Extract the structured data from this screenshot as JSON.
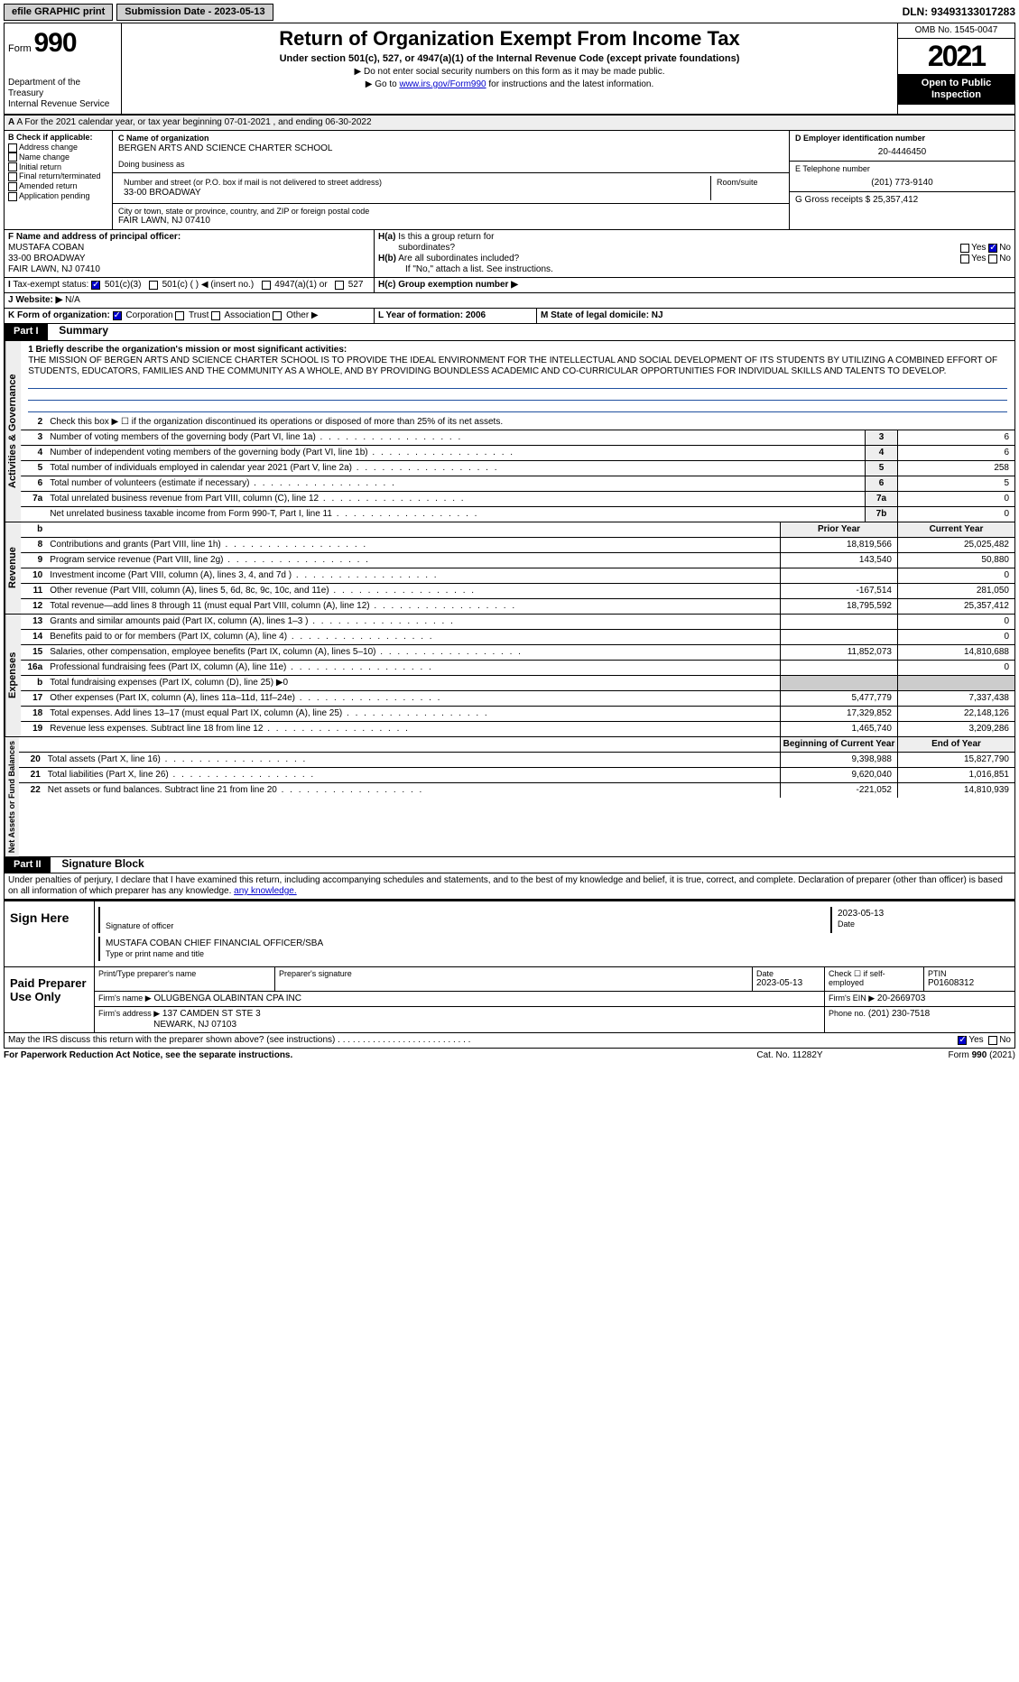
{
  "top": {
    "efile": "efile GRAPHIC print",
    "submission": "Submission Date - 2023-05-13",
    "dln": "DLN: 93493133017283"
  },
  "header": {
    "form_label": "Form",
    "form_num": "990",
    "dept": "Department of the Treasury\nInternal Revenue Service",
    "title": "Return of Organization Exempt From Income Tax",
    "sub": "Under section 501(c), 527, or 4947(a)(1) of the Internal Revenue Code (except private foundations)",
    "bullet1": "▶ Do not enter social security numbers on this form as it may be made public.",
    "bullet2_pre": "▶ Go to ",
    "bullet2_link": "www.irs.gov/Form990",
    "bullet2_post": " for instructions and the latest information.",
    "omb": "OMB No. 1545-0047",
    "year": "2021",
    "open": "Open to Public Inspection"
  },
  "rowA": "A For the 2021 calendar year, or tax year beginning 07-01-2021    , and ending 06-30-2022",
  "colB": {
    "hdr": "B Check if applicable:",
    "items": [
      "Address change",
      "Name change",
      "Initial return",
      "Final return/terminated",
      "Amended return",
      "Application pending"
    ]
  },
  "colC": {
    "hdr": "C Name of organization",
    "name": "BERGEN ARTS AND SCIENCE CHARTER SCHOOL",
    "dba": "Doing business as",
    "addr_hdr": "Number and street (or P.O. box if mail is not delivered to street address)",
    "addr": "33-00 BROADWAY",
    "room": "Room/suite",
    "city_hdr": "City or town, state or province, country, and ZIP or foreign postal code",
    "city": "FAIR LAWN, NJ  07410"
  },
  "colD": {
    "ein_hdr": "D Employer identification number",
    "ein": "20-4446450",
    "tel_hdr": "E Telephone number",
    "tel": "(201) 773-9140",
    "gross": "G Gross receipts $ 25,357,412"
  },
  "rowF": {
    "hdr": "F  Name and address of principal officer:",
    "name": "MUSTAFA COBAN",
    "addr1": "33-00 BROADWAY",
    "addr2": "FAIR LAWN, NJ  07410"
  },
  "rowH": {
    "ha": "H(a)  Is this a group return for subordinates?",
    "hb": "H(b)  Are all subordinates included?",
    "hb_note": "If \"No,\" attach a list. See instructions.",
    "hc": "H(c)  Group exemption number ▶",
    "yes": "Yes",
    "no": "No"
  },
  "rowI": {
    "label": "I  Tax-exempt status:",
    "opts": [
      "501(c)(3)",
      "501(c) (  ) ◀ (insert no.)",
      "4947(a)(1) or",
      "527"
    ]
  },
  "rowJ": {
    "label": "J  Website: ▶",
    "val": "N/A"
  },
  "rowK": {
    "label": "K Form of organization:",
    "opts": [
      "Corporation",
      "Trust",
      "Association",
      "Other ▶"
    ]
  },
  "rowL": {
    "label": "L Year of formation: 2006"
  },
  "rowM": {
    "label": "M State of legal domicile: NJ"
  },
  "part1": {
    "hdr": "Part I",
    "title": "Summary",
    "l1_label": "1  Briefly describe the organization's mission or most significant activities:",
    "mission": "THE MISSION OF BERGEN ARTS AND SCIENCE CHARTER SCHOOL IS TO PROVIDE THE IDEAL ENVIRONMENT FOR THE INTELLECTUAL AND SOCIAL DEVELOPMENT OF ITS STUDENTS BY UTILIZING A COMBINED EFFORT OF STUDENTS, EDUCATORS, FAMILIES AND THE COMMUNITY AS A WHOLE, AND BY PROVIDING BOUNDLESS ACADEMIC AND CO-CURRICULAR OPPORTUNITIES FOR INDIVIDUAL SKILLS AND TALENTS TO DEVELOP.",
    "l2": "Check this box ▶ ☐  if the organization discontinued its operations or disposed of more than 25% of its net assets.",
    "lines_gov": [
      {
        "n": "3",
        "t": "Number of voting members of the governing body (Part VI, line 1a)",
        "b": "3",
        "v": "6"
      },
      {
        "n": "4",
        "t": "Number of independent voting members of the governing body (Part VI, line 1b)",
        "b": "4",
        "v": "6"
      },
      {
        "n": "5",
        "t": "Total number of individuals employed in calendar year 2021 (Part V, line 2a)",
        "b": "5",
        "v": "258"
      },
      {
        "n": "6",
        "t": "Total number of volunteers (estimate if necessary)",
        "b": "6",
        "v": "5"
      },
      {
        "n": "7a",
        "t": "Total unrelated business revenue from Part VIII, column (C), line 12",
        "b": "7a",
        "v": "0"
      },
      {
        "n": "",
        "t": "Net unrelated business taxable income from Form 990-T, Part I, line 11",
        "b": "7b",
        "v": "0"
      }
    ],
    "col_hdrs": {
      "prior": "Prior Year",
      "current": "Current Year"
    },
    "revenue": [
      {
        "n": "8",
        "t": "Contributions and grants (Part VIII, line 1h)",
        "p": "18,819,566",
        "c": "25,025,482"
      },
      {
        "n": "9",
        "t": "Program service revenue (Part VIII, line 2g)",
        "p": "143,540",
        "c": "50,880"
      },
      {
        "n": "10",
        "t": "Investment income (Part VIII, column (A), lines 3, 4, and 7d )",
        "p": "",
        "c": "0"
      },
      {
        "n": "11",
        "t": "Other revenue (Part VIII, column (A), lines 5, 6d, 8c, 9c, 10c, and 11e)",
        "p": "-167,514",
        "c": "281,050"
      },
      {
        "n": "12",
        "t": "Total revenue—add lines 8 through 11 (must equal Part VIII, column (A), line 12)",
        "p": "18,795,592",
        "c": "25,357,412"
      }
    ],
    "expenses": [
      {
        "n": "13",
        "t": "Grants and similar amounts paid (Part IX, column (A), lines 1–3 )",
        "p": "",
        "c": "0"
      },
      {
        "n": "14",
        "t": "Benefits paid to or for members (Part IX, column (A), line 4)",
        "p": "",
        "c": "0"
      },
      {
        "n": "15",
        "t": "Salaries, other compensation, employee benefits (Part IX, column (A), lines 5–10)",
        "p": "11,852,073",
        "c": "14,810,688"
      },
      {
        "n": "16a",
        "t": "Professional fundraising fees (Part IX, column (A), line 11e)",
        "p": "",
        "c": "0"
      },
      {
        "n": "b",
        "t": "Total fundraising expenses (Part IX, column (D), line 25) ▶0",
        "p": "grey",
        "c": "grey"
      },
      {
        "n": "17",
        "t": "Other expenses (Part IX, column (A), lines 11a–11d, 11f–24e)",
        "p": "5,477,779",
        "c": "7,337,438"
      },
      {
        "n": "18",
        "t": "Total expenses. Add lines 13–17 (must equal Part IX, column (A), line 25)",
        "p": "17,329,852",
        "c": "22,148,126"
      },
      {
        "n": "19",
        "t": "Revenue less expenses. Subtract line 18 from line 12",
        "p": "1,465,740",
        "c": "3,209,286"
      }
    ],
    "net_hdrs": {
      "begin": "Beginning of Current Year",
      "end": "End of Year"
    },
    "net": [
      {
        "n": "20",
        "t": "Total assets (Part X, line 16)",
        "p": "9,398,988",
        "c": "15,827,790"
      },
      {
        "n": "21",
        "t": "Total liabilities (Part X, line 26)",
        "p": "9,620,040",
        "c": "1,016,851"
      },
      {
        "n": "22",
        "t": "Net assets or fund balances. Subtract line 21 from line 20",
        "p": "-221,052",
        "c": "14,810,939"
      }
    ]
  },
  "vert": {
    "gov": "Activities & Governance",
    "rev": "Revenue",
    "exp": "Expenses",
    "net": "Net Assets or Fund Balances"
  },
  "part2": {
    "hdr": "Part II",
    "title": "Signature Block",
    "decl": "Under penalties of perjury, I declare that I have examined this return, including accompanying schedules and statements, and to the best of my knowledge and belief, it is true, correct, and complete. Declaration of preparer (other than officer) is based on all information of which preparer has any knowledge.",
    "sign_here": "Sign Here",
    "sig_of": "Signature of officer",
    "sig_date": "2023-05-13",
    "date_lbl": "Date",
    "sig_name": "MUSTAFA COBAN  CHIEF FINANCIAL OFFICER/SBA",
    "sig_type": "Type or print name and title",
    "paid": "Paid Preparer Use Only",
    "prep_name_hdr": "Print/Type preparer's name",
    "prep_sig_hdr": "Preparer's signature",
    "prep_date_hdr": "Date",
    "prep_date": "2023-05-13",
    "check_self": "Check ☐ if self-employed",
    "ptin_hdr": "PTIN",
    "ptin": "P01608312",
    "firm_name_hdr": "Firm's name   ▶",
    "firm_name": "OLUGBENGA OLABINTAN CPA INC",
    "firm_ein_hdr": "Firm's EIN ▶",
    "firm_ein": "20-2669703",
    "firm_addr_hdr": "Firm's address ▶",
    "firm_addr": "137 CAMDEN ST STE 3\nNEWARK, NJ  07103",
    "phone_hdr": "Phone no.",
    "phone": "(201) 230-7518",
    "discuss": "May the IRS discuss this return with the preparer shown above? (see instructions)"
  },
  "footer": {
    "left": "For Paperwork Reduction Act Notice, see the separate instructions.",
    "mid": "Cat. No. 11282Y",
    "right": "Form 990 (2021)"
  }
}
